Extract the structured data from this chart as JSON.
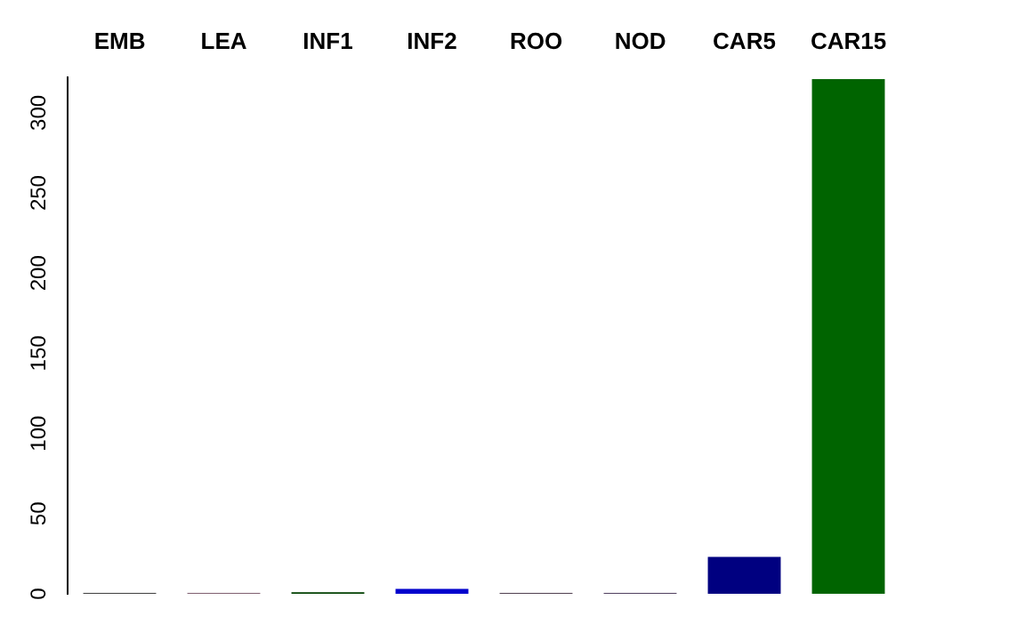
{
  "chart_data": {
    "type": "bar",
    "categories": [
      "EMB",
      "LEA",
      "INF1",
      "INF2",
      "ROO",
      "NOD",
      "CAR5",
      "CAR15"
    ],
    "values": [
      0.5,
      0.5,
      1,
      3,
      0.5,
      0.5,
      23,
      321
    ],
    "colors": [
      "#404040",
      "#806070",
      "#004000",
      "#0000cd",
      "#504050",
      "#504060",
      "#000080",
      "#006400"
    ],
    "ylim": [
      0,
      322
    ],
    "yticks": [
      0,
      50,
      100,
      150,
      200,
      250,
      300
    ],
    "grid": false
  }
}
